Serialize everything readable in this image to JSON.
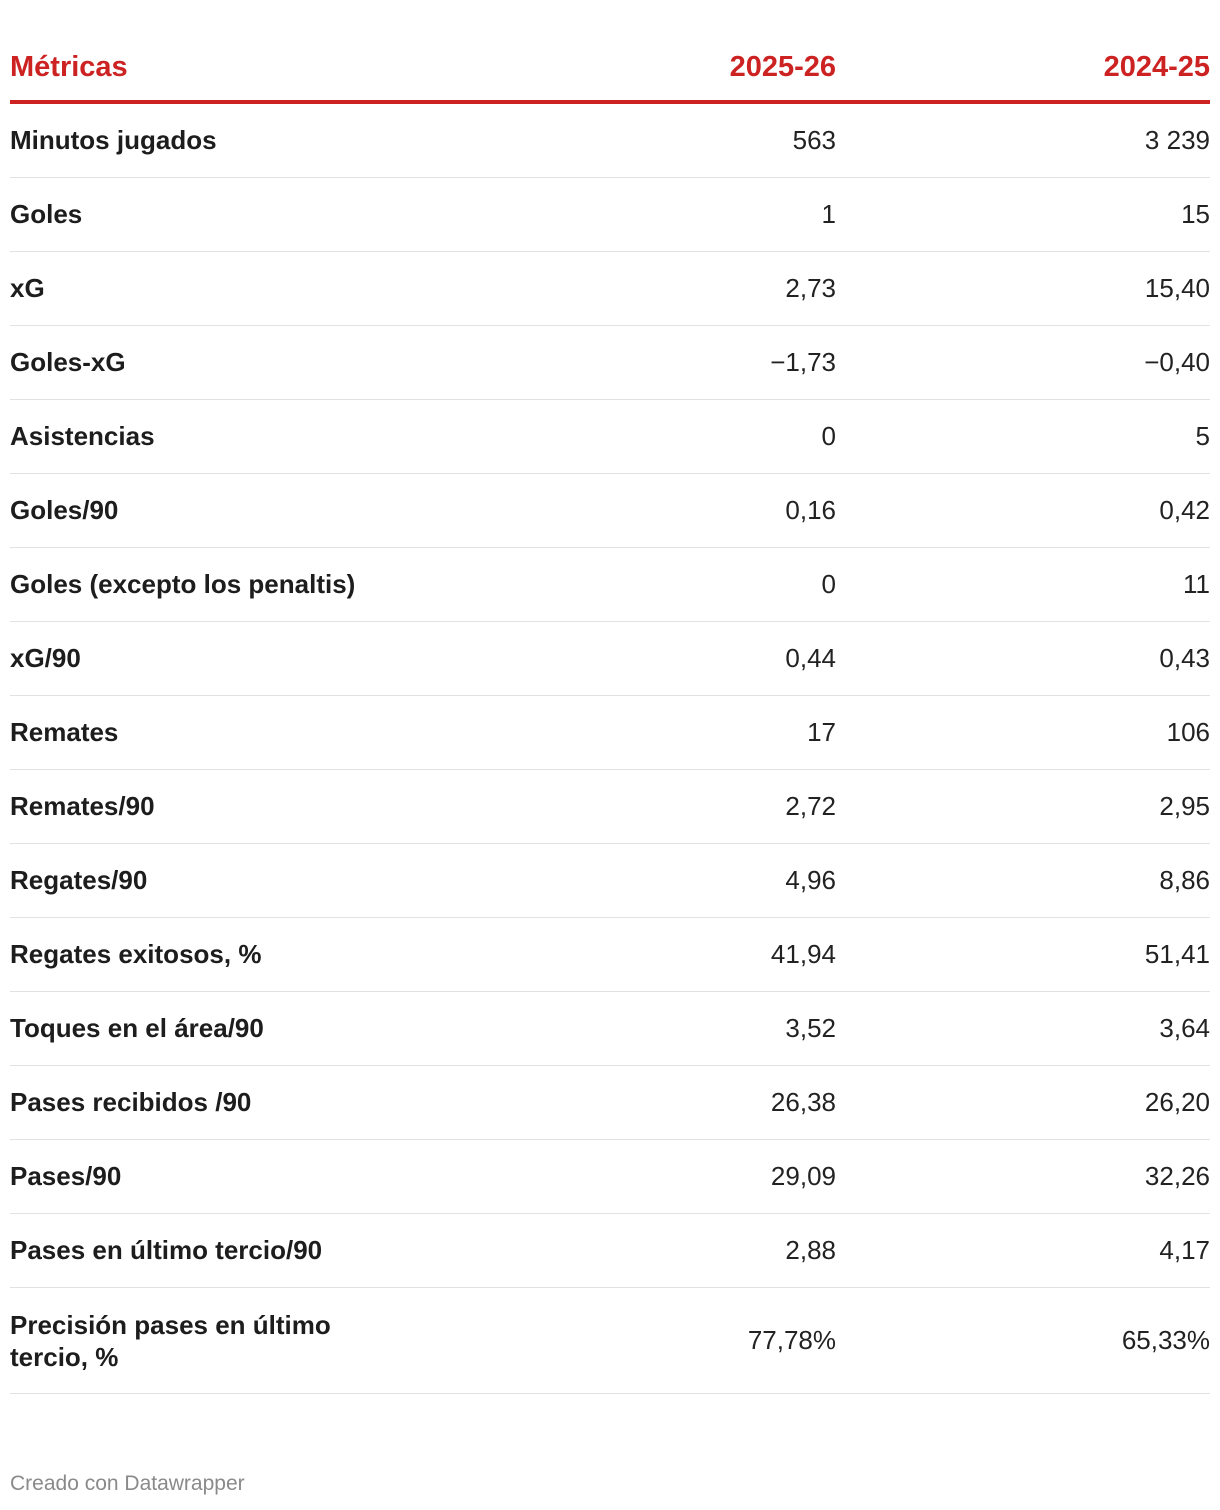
{
  "chart_data": {
    "type": "table",
    "columns": [
      "Métricas",
      "2025-26",
      "2024-25"
    ],
    "rows": [
      {
        "metric": "Minutos jugados",
        "v2025": "563",
        "v2024": "3 239"
      },
      {
        "metric": "Goles",
        "v2025": "1",
        "v2024": "15"
      },
      {
        "metric": "xG",
        "v2025": "2,73",
        "v2024": "15,40"
      },
      {
        "metric": "Goles-xG",
        "v2025": "−1,73",
        "v2024": "−0,40"
      },
      {
        "metric": "Asistencias",
        "v2025": "0",
        "v2024": "5"
      },
      {
        "metric": "Goles/90",
        "v2025": "0,16",
        "v2024": "0,42"
      },
      {
        "metric": "Goles (excepto los penaltis)",
        "v2025": "0",
        "v2024": "11"
      },
      {
        "metric": "xG/90",
        "v2025": "0,44",
        "v2024": "0,43"
      },
      {
        "metric": "Remates",
        "v2025": "17",
        "v2024": "106"
      },
      {
        "metric": "Remates/90",
        "v2025": "2,72",
        "v2024": "2,95"
      },
      {
        "metric": "Regates/90",
        "v2025": "4,96",
        "v2024": "8,86"
      },
      {
        "metric": "Regates exitosos, %",
        "v2025": "41,94",
        "v2024": "51,41"
      },
      {
        "metric": "Toques en el área/90",
        "v2025": "3,52",
        "v2024": "3,64"
      },
      {
        "metric": "Pases recibidos /90",
        "v2025": "26,38",
        "v2024": "26,20"
      },
      {
        "metric": "Pases/90",
        "v2025": "29,09",
        "v2024": "32,26"
      },
      {
        "metric": "Pases en último tercio/90",
        "v2025": "2,88",
        "v2024": "4,17"
      },
      {
        "metric": "Precisión pases en último tercio, %",
        "v2025": "77,78%",
        "v2024": "65,33%"
      }
    ]
  },
  "footer": {
    "credit": "Creado con Datawrapper"
  },
  "colors": {
    "header_accent": "#cc2222",
    "row_divider": "#e2e2e2",
    "footer_text": "#8a8a8a"
  }
}
